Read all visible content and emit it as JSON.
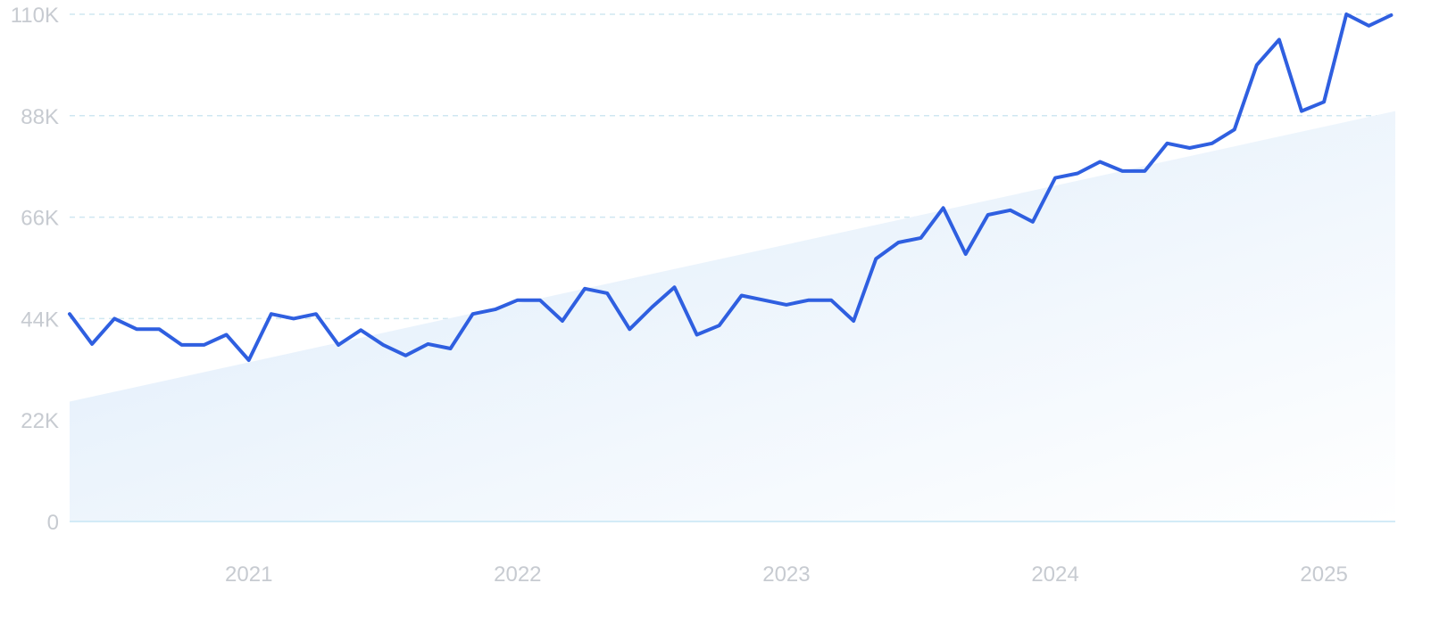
{
  "colors": {
    "line": "#2f5fe0",
    "trend_fill_start": "#dcebfa",
    "trend_fill_end": "#ffffff",
    "grid": "#cfe7f1",
    "tick_text": "#c7cbd1"
  },
  "chart_data": {
    "type": "line",
    "title": "",
    "xlabel": "",
    "ylabel": "",
    "grid": true,
    "legend": "none",
    "ylim": [
      0,
      110000
    ],
    "xlim": [
      "2020-05",
      "2025-03"
    ],
    "y_ticks": [
      {
        "value": 0,
        "label": "0"
      },
      {
        "value": 22000,
        "label": "22K"
      },
      {
        "value": 44000,
        "label": "44K"
      },
      {
        "value": 66000,
        "label": "66K"
      },
      {
        "value": 88000,
        "label": "88K"
      },
      {
        "value": 110000,
        "label": "110K"
      }
    ],
    "x_ticks": [
      {
        "value": "2021-01",
        "label": "2021"
      },
      {
        "value": "2022-01",
        "label": "2022"
      },
      {
        "value": "2023-01",
        "label": "2023"
      },
      {
        "value": "2024-01",
        "label": "2024"
      },
      {
        "value": "2025-01",
        "label": "2025"
      }
    ],
    "trend": {
      "type": "area",
      "x": [
        "2020-05",
        "2025-03"
      ],
      "y": [
        26000,
        89000
      ]
    },
    "series": [
      {
        "x": [
          "2020-05",
          "2020-06",
          "2020-07",
          "2020-08",
          "2020-09",
          "2020-10",
          "2020-11",
          "2020-12",
          "2021-01",
          "2021-02",
          "2021-03",
          "2021-04",
          "2021-05",
          "2021-06",
          "2021-07",
          "2021-08",
          "2021-09",
          "2021-10",
          "2021-11",
          "2021-12",
          "2022-01",
          "2022-02",
          "2022-03",
          "2022-04",
          "2022-05",
          "2022-06",
          "2022-07",
          "2022-08",
          "2022-09",
          "2022-10",
          "2022-11",
          "2022-12",
          "2023-01",
          "2023-02",
          "2023-03",
          "2023-04",
          "2023-05",
          "2023-06",
          "2023-07",
          "2023-08",
          "2023-09",
          "2023-10",
          "2023-11",
          "2023-12",
          "2024-01",
          "2024-02",
          "2024-03",
          "2024-04",
          "2024-05",
          "2024-06",
          "2024-07",
          "2024-08",
          "2024-09",
          "2024-10",
          "2024-11",
          "2024-12",
          "2025-01",
          "2025-02",
          "2025-03",
          "2025-04"
        ],
        "y": [
          45000,
          38500,
          44000,
          41700,
          41700,
          38300,
          38300,
          40500,
          35000,
          45000,
          44000,
          45000,
          38300,
          41500,
          38300,
          36000,
          38500,
          37500,
          45000,
          46000,
          48000,
          48000,
          43500,
          50500,
          49500,
          41700,
          46500,
          50800,
          40500,
          42500,
          49000,
          48000,
          47000,
          48000,
          48000,
          43500,
          57000,
          60500,
          61500,
          68000,
          58000,
          66500,
          67500,
          65000,
          74500,
          75500,
          78000,
          76000,
          76000,
          82000,
          81000,
          82000,
          85000,
          99000,
          104500,
          89000,
          91000,
          110000,
          107500,
          109800
        ]
      }
    ]
  }
}
